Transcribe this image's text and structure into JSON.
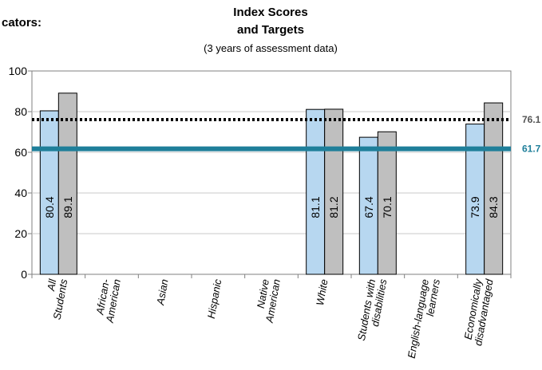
{
  "header": {
    "left_label": "cators:",
    "title_line1": "Index Scores",
    "title_line2": "and Targets",
    "subtitle": "(3 years of assessment data)"
  },
  "chart_data": {
    "type": "bar",
    "categories": [
      [
        "All",
        "Students"
      ],
      [
        "African-",
        "American"
      ],
      [
        "Asian"
      ],
      [
        "Hispanic"
      ],
      [
        "Native",
        "American"
      ],
      [
        "White"
      ],
      [
        "Students with",
        "disabilities"
      ],
      [
        "English-language",
        "learners"
      ],
      [
        "Economically",
        "disadvantaged"
      ]
    ],
    "series": [
      {
        "values": [
          80.4,
          null,
          null,
          null,
          null,
          81.1,
          67.4,
          null,
          73.9
        ],
        "labels": [
          "80.4",
          null,
          null,
          null,
          null,
          "81.1",
          "67.4",
          null,
          "73.9"
        ],
        "color": "#b7d7f0"
      },
      {
        "values": [
          89.1,
          null,
          null,
          null,
          null,
          81.2,
          70.1,
          null,
          84.3
        ],
        "labels": [
          "89.1",
          null,
          null,
          null,
          null,
          "81.2",
          "70.1",
          null,
          "84.3"
        ],
        "color": "#bfbfbf"
      }
    ],
    "ylim": [
      0,
      100
    ],
    "yticks": [
      "0",
      "20",
      "40",
      "60",
      "80",
      "100"
    ],
    "grid": true,
    "reference_lines": [
      {
        "value": 76.1,
        "label": "76.1",
        "style": "dotted",
        "color": "#000000",
        "label_color": "#555555"
      },
      {
        "value": 61.7,
        "label": "61.7",
        "style": "solid",
        "color": "#1f7f9a",
        "label_color": "#1f7f9a"
      }
    ]
  }
}
